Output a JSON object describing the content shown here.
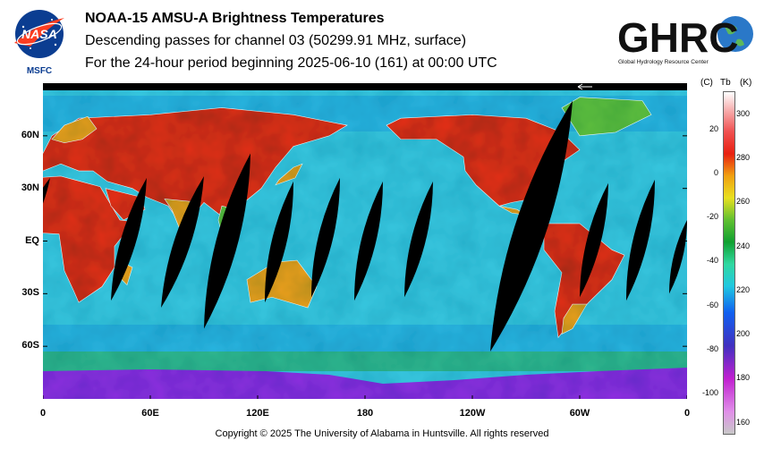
{
  "header": {
    "title": "NOAA-15 AMSU-A Brightness Temperatures",
    "subtitle": "Descending passes for channel 03 (50299.91 MHz, surface)",
    "period": "For the 24-hour period beginning 2025-06-10 (161) at 00:00 UTC"
  },
  "logos": {
    "left": {
      "text": "NASA",
      "caption": "MSFC"
    },
    "right": {
      "text": "GHRC",
      "caption": "Global Hydrology Resource Center"
    }
  },
  "map": {
    "projection": "equirectangular",
    "lon_range": [
      0,
      360
    ],
    "lat_range": [
      -90,
      90
    ],
    "lat_labels": [
      "60N",
      "30N",
      "EQ",
      "30S",
      "60S"
    ],
    "lat_values": [
      60,
      30,
      0,
      -30,
      -60
    ],
    "lon_labels": [
      "0",
      "60E",
      "120E",
      "180",
      "120W",
      "60W",
      "0"
    ],
    "lon_values": [
      0,
      60,
      120,
      180,
      240,
      300,
      360
    ],
    "swath_gaps": [
      {
        "lon_top": 4,
        "lon_bottom": -14,
        "lat_top": 36,
        "lat_bottom": -4
      },
      {
        "lon_top": 58,
        "lon_bottom": 38,
        "lat_top": 36,
        "lat_bottom": -34
      },
      {
        "lon_top": 90,
        "lon_bottom": 66,
        "lat_top": 37,
        "lat_bottom": -38
      },
      {
        "lon_top": 116,
        "lon_bottom": 90,
        "lat_top": 50,
        "lat_bottom": -50
      },
      {
        "lon_top": 140,
        "lon_bottom": 124,
        "lat_top": 34,
        "lat_bottom": -35
      },
      {
        "lon_top": 166,
        "lon_bottom": 150,
        "lat_top": 36,
        "lat_bottom": -32
      },
      {
        "lon_top": 190,
        "lon_bottom": 174,
        "lat_top": 34,
        "lat_bottom": -34
      },
      {
        "lon_top": 218,
        "lon_bottom": 202,
        "lat_top": 34,
        "lat_bottom": -32
      },
      {
        "lon_top": 296,
        "lon_bottom": 250,
        "lat_top": 80,
        "lat_bottom": -63
      },
      {
        "lon_top": 316,
        "lon_bottom": 300,
        "lat_top": 33,
        "lat_bottom": -32
      },
      {
        "lon_top": 342,
        "lon_bottom": 326,
        "lat_top": 35,
        "lat_bottom": -34
      },
      {
        "lon_top": 360,
        "lon_bottom": 350,
        "lat_top": 12,
        "lat_bottom": -30
      }
    ]
  },
  "colorbar": {
    "unit_c": "(C)",
    "unit_tb": "Tb",
    "unit_k": "(K)",
    "kelvin_range": [
      155,
      310
    ],
    "celsius_labels": [
      "20",
      "0",
      "-20",
      "-40",
      "-60",
      "-80",
      "-100"
    ],
    "celsius_values": [
      20,
      0,
      -20,
      -40,
      -60,
      -80,
      -100
    ],
    "kelvin_labels": [
      "300",
      "280",
      "260",
      "240",
      "220",
      "200",
      "180",
      "160"
    ],
    "kelvin_values": [
      300,
      280,
      260,
      240,
      220,
      200,
      180,
      160
    ],
    "stops": [
      {
        "k": 155,
        "color": "#c8c8c8"
      },
      {
        "k": 165,
        "color": "#e090e8"
      },
      {
        "k": 180,
        "color": "#c020d0"
      },
      {
        "k": 195,
        "color": "#4030c0"
      },
      {
        "k": 210,
        "color": "#1060f0"
      },
      {
        "k": 222,
        "color": "#20c8e0"
      },
      {
        "k": 232,
        "color": "#30d8a0"
      },
      {
        "k": 242,
        "color": "#10a030"
      },
      {
        "k": 252,
        "color": "#60c030"
      },
      {
        "k": 262,
        "color": "#e8e020"
      },
      {
        "k": 272,
        "color": "#f0a010"
      },
      {
        "k": 282,
        "color": "#e82010"
      },
      {
        "k": 292,
        "color": "#f05050"
      },
      {
        "k": 302,
        "color": "#f8b0b0"
      },
      {
        "k": 310,
        "color": "#ffffff"
      }
    ]
  },
  "colors": {
    "ocean": "#38c8e0",
    "ocean_cool": "#20a8e0",
    "southern_ocean": "#30b890",
    "antarctica": "#9030e0",
    "hot_land": "#e83018",
    "warm_land": "#f0a020",
    "cool_land": "#60c040",
    "swath_gap": "#000000",
    "coastline": "#ffffff"
  },
  "footer": {
    "copyright": "Copyright © 2025 The University of Alabama in Huntsville.  All rights reserved"
  }
}
